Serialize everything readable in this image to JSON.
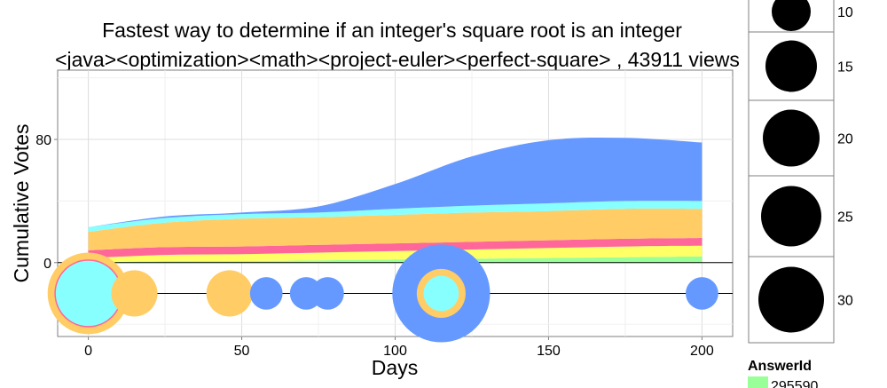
{
  "chart_data": {
    "type": "area",
    "title": "Fastest way to determine if an integer's square root is an integer",
    "subtitle": "<java><optimization><math><project-euler><perfect-square> ,  43911  views",
    "xlabel": "Days",
    "ylabel": "Cumulative Votes",
    "xlim": [
      -10,
      210
    ],
    "ylim": [
      -48,
      125
    ],
    "x_ticks": [
      0,
      50,
      100,
      150,
      200
    ],
    "y_ticks": [
      0,
      80
    ],
    "grid": true,
    "x": [
      0,
      25,
      50,
      75,
      100,
      125,
      150,
      175,
      200
    ],
    "series": [
      {
        "color": "#99ff99",
        "values": [
          0,
          1,
          1,
          1.5,
          2,
          2.5,
          3,
          3.5,
          4
        ]
      },
      {
        "color": "#ffff66",
        "values": [
          3,
          4,
          4.5,
          5,
          5.5,
          6,
          6.5,
          7,
          7
        ]
      },
      {
        "color": "#ff6699",
        "values": [
          5,
          5,
          5,
          5,
          5,
          5,
          5,
          5,
          5
        ]
      },
      {
        "color": "#ffcc66",
        "values": [
          12,
          16,
          18,
          18,
          18.5,
          19,
          19,
          19.5,
          19
        ]
      },
      {
        "color": "#88ffff",
        "values": [
          3,
          3,
          3,
          3,
          4,
          4.5,
          5,
          5,
          5
        ]
      },
      {
        "color": "#6699ff",
        "values": [
          0,
          1,
          1,
          4,
          16,
          32,
          41,
          41,
          38
        ]
      }
    ],
    "points": [
      {
        "x": 0,
        "size": 30,
        "color": "#ffcc66"
      },
      {
        "x": 0,
        "size": 25,
        "color": "#ff6699"
      },
      {
        "x": 0,
        "size": 24,
        "color": "#88ffff"
      },
      {
        "x": 15,
        "size": 17,
        "color": "#ffcc66"
      },
      {
        "x": 46,
        "size": 17,
        "color": "#ffcc66"
      },
      {
        "x": 58,
        "size": 12,
        "color": "#6699ff"
      },
      {
        "x": 71,
        "size": 12,
        "color": "#6699ff"
      },
      {
        "x": 78,
        "size": 12,
        "color": "#6699ff"
      },
      {
        "x": 115,
        "size": 36,
        "color": "#6699ff"
      },
      {
        "x": 115,
        "size": 18,
        "color": "#ffcc66"
      },
      {
        "x": 115,
        "size": 13,
        "color": "#88ffff"
      },
      {
        "x": 200,
        "size": 12,
        "color": "#6699ff"
      }
    ],
    "size_legend": {
      "values": [
        "10",
        "15",
        "20",
        "25",
        "30"
      ]
    },
    "answer_legend": {
      "title": "AnswerId",
      "entries": [
        {
          "label": "295590",
          "color": "#99ff99"
        }
      ]
    }
  }
}
